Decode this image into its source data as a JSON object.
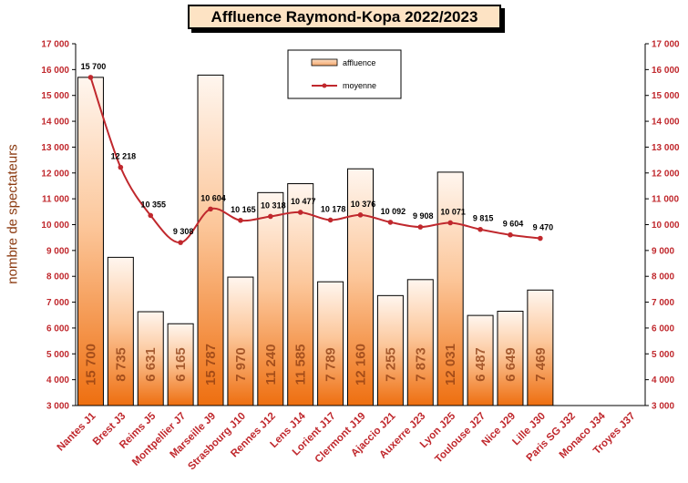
{
  "chart_data": {
    "type": "bar",
    "title": "Affluence Raymond-Kopa 2022/2023",
    "ylabel": "nombre de spectateurs",
    "ylim": [
      3000,
      17000
    ],
    "yticks": [
      "3 000",
      "4 000",
      "5 000",
      "6 000",
      "7 000",
      "8 000",
      "9 000",
      "10 000",
      "11 000",
      "12 000",
      "13 000",
      "14 000",
      "15 000",
      "16 000",
      "17 000"
    ],
    "categories": [
      "Nantes J1",
      "Brest J3",
      "Reims J5",
      "Montpellier J7",
      "Marseille J9",
      "Strasbourg J10",
      "Rennes J12",
      "Lens J14",
      "Lorient J17",
      "Clermont J19",
      "Ajaccio J21",
      "Auxerre J23",
      "Lyon J25",
      "Toulouse J27",
      "Nice J29",
      "Lille J30",
      "Paris SG J32",
      "Monaco J34",
      "Troyes J37"
    ],
    "series": [
      {
        "name": "affluence",
        "type": "bar",
        "color": "#f07a1c",
        "values": [
          15700,
          8735,
          6631,
          6165,
          15787,
          7970,
          11240,
          11585,
          7789,
          12160,
          7255,
          7873,
          12031,
          6487,
          6649,
          7469,
          null,
          null,
          null
        ],
        "labels": [
          "15 700",
          "8 735",
          "6 631",
          "6 165",
          "15 787",
          "7 970",
          "11 240",
          "11 585",
          "7 789",
          "12 160",
          "7 255",
          "7 873",
          "12 031",
          "6 487",
          "6 649",
          "7 469",
          "",
          "",
          ""
        ]
      },
      {
        "name": "moyenne",
        "type": "line",
        "color": "#c0282d",
        "values": [
          15700,
          12218,
          10355,
          9308,
          10604,
          10165,
          10318,
          10477,
          10178,
          10376,
          10092,
          9908,
          10071,
          9815,
          9604,
          9470,
          null,
          null,
          null
        ],
        "labels": [
          "15 700",
          "12 218",
          "10 355",
          "9 308",
          "10 604",
          "10 165",
          "10 318",
          "10 477",
          "10 178",
          "10 376",
          "10 092",
          "9 908",
          "10 071",
          "9 815",
          "9 604",
          "9 470",
          "",
          "",
          ""
        ]
      }
    ],
    "legend": "top-center",
    "grid": false
  }
}
